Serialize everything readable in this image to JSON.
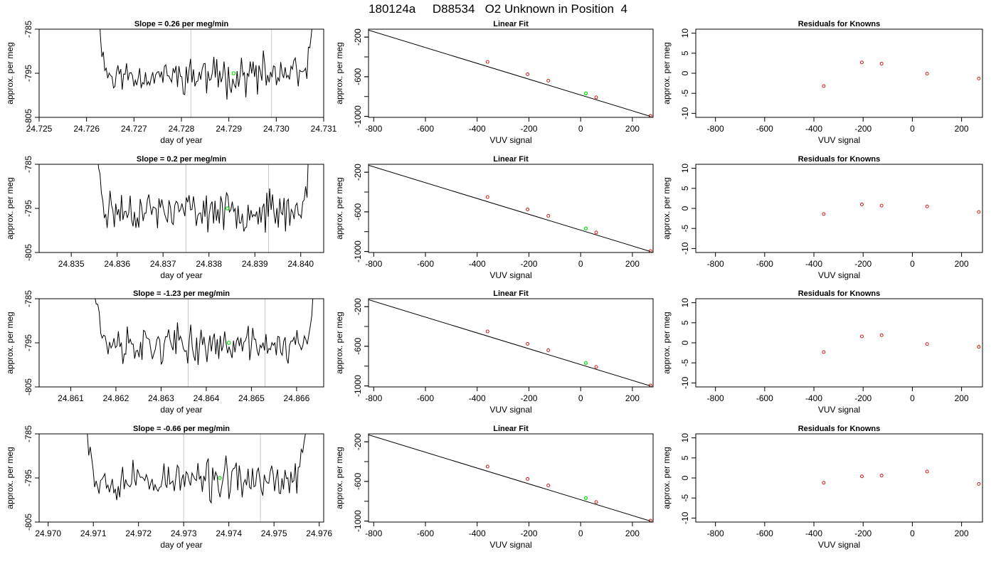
{
  "figure": {
    "title": "180124a     D88534   O2 Unknown in Position  4",
    "colors": {
      "axes": "#000000",
      "line": "#000000",
      "fit_point": "#cc0000",
      "unknown_point": "#00dd00",
      "vline": "#c8c8c8"
    }
  },
  "chart_data": [
    {
      "type": "line",
      "panel": "time-series-row-1",
      "title": "Slope =  0.26  per meg/min",
      "xlabel": "day of year",
      "ylabel": "approx. per meg",
      "xlim": [
        24.725,
        24.731
      ],
      "ylim": [
        -805,
        -785
      ],
      "xticks": [
        24.725,
        24.726,
        24.727,
        24.728,
        24.729,
        24.73,
        24.731
      ],
      "yticks": [
        -805,
        -795,
        -785
      ],
      "window_start": 24.7262,
      "window_end": 24.7308,
      "vlines": [
        24.7282,
        24.7299
      ],
      "unknown_point": {
        "x": 24.7291,
        "y": -795.0
      },
      "seed": 11
    },
    {
      "type": "scatter",
      "panel": "linear-fit-row-1",
      "title": "Linear Fit",
      "xlabel": "VUV signal",
      "ylabel": "approx. per meg",
      "xlim": [
        -820,
        280
      ],
      "ylim": [
        -1010,
        -120
      ],
      "xticks": [
        -800,
        -600,
        -400,
        -200,
        0,
        200
      ],
      "yticks": [
        -1000,
        -600,
        -200
      ],
      "fit_line": {
        "x": [
          -820,
          270
        ],
        "y": [
          -130,
          -1000
        ]
      },
      "points": {
        "x": [
          -360,
          -205,
          -125,
          60,
          270
        ],
        "y": [
          -450,
          -575,
          -640,
          -808,
          -995
        ]
      },
      "unknown_point": {
        "x": 20,
        "y": -768
      }
    },
    {
      "type": "scatter",
      "panel": "residuals-row-1",
      "title": "Residuals for Knowns",
      "xlabel": "VUV signal",
      "ylabel": "approx. per meg",
      "xlim": [
        -880,
        285
      ],
      "ylim": [
        -11,
        11
      ],
      "xticks": [
        -800,
        -600,
        -400,
        -200,
        0,
        200
      ],
      "yticks": [
        -10,
        -5,
        0,
        5,
        10
      ],
      "points": {
        "x": [
          -360,
          -205,
          -125,
          60,
          270
        ],
        "y": [
          -3.2,
          2.7,
          2.4,
          -0.1,
          -1.3
        ]
      }
    },
    {
      "type": "line",
      "panel": "time-series-row-2",
      "title": "Slope =  0.2  per meg/min",
      "xlabel": "day of year",
      "ylabel": "approx. per meg",
      "xlim": [
        24.8343,
        24.8405
      ],
      "ylim": [
        -805,
        -785
      ],
      "xticks": [
        24.835,
        24.836,
        24.837,
        24.838,
        24.839,
        24.84
      ],
      "yticks": [
        -805,
        -795,
        -785
      ],
      "window_start": 24.8355,
      "window_end": 24.8402,
      "vlines": [
        24.8375,
        24.8393
      ],
      "unknown_point": {
        "x": 24.8384,
        "y": -795.0
      },
      "seed": 23
    },
    {
      "type": "scatter",
      "panel": "linear-fit-row-2",
      "title": "Linear Fit",
      "xlabel": "VUV signal",
      "ylabel": "approx. per meg",
      "xlim": [
        -820,
        280
      ],
      "ylim": [
        -1010,
        -120
      ],
      "xticks": [
        -800,
        -600,
        -400,
        -200,
        0,
        200
      ],
      "yticks": [
        -1000,
        -600,
        -200
      ],
      "fit_line": {
        "x": [
          -820,
          270
        ],
        "y": [
          -130,
          -1000
        ]
      },
      "points": {
        "x": [
          -360,
          -205,
          -125,
          60,
          270
        ],
        "y": [
          -450,
          -575,
          -640,
          -808,
          -995
        ]
      },
      "unknown_point": {
        "x": 20,
        "y": -768
      }
    },
    {
      "type": "scatter",
      "panel": "residuals-row-2",
      "title": "Residuals for Knowns",
      "xlabel": "VUV signal",
      "ylabel": "approx. per meg",
      "xlim": [
        -880,
        285
      ],
      "ylim": [
        -11,
        11
      ],
      "xticks": [
        -800,
        -600,
        -400,
        -200,
        0,
        200
      ],
      "yticks": [
        -10,
        -5,
        0,
        5,
        10
      ],
      "points": {
        "x": [
          -360,
          -205,
          -125,
          60,
          270
        ],
        "y": [
          -1.4,
          1.0,
          0.7,
          0.5,
          -0.9
        ]
      }
    },
    {
      "type": "line",
      "panel": "time-series-row-3",
      "title": "Slope =  -1.23  per meg/min",
      "xlabel": "day of year",
      "ylabel": "approx. per meg",
      "xlim": [
        24.8603,
        24.8666
      ],
      "ylim": [
        -805,
        -785
      ],
      "xticks": [
        24.861,
        24.862,
        24.863,
        24.864,
        24.865,
        24.866
      ],
      "yticks": [
        -805,
        -795,
        -785
      ],
      "window_start": 24.8615,
      "window_end": 24.8664,
      "vlines": [
        24.8636,
        24.8653
      ],
      "unknown_point": {
        "x": 24.8645,
        "y": -795.0
      },
      "seed": 37
    },
    {
      "type": "scatter",
      "panel": "linear-fit-row-3",
      "title": "Linear Fit",
      "xlabel": "VUV signal",
      "ylabel": "approx. per meg",
      "xlim": [
        -820,
        280
      ],
      "ylim": [
        -1010,
        -120
      ],
      "xticks": [
        -800,
        -600,
        -400,
        -200,
        0,
        200
      ],
      "yticks": [
        -1000,
        -600,
        -200
      ],
      "fit_line": {
        "x": [
          -820,
          270
        ],
        "y": [
          -130,
          -1000
        ]
      },
      "points": {
        "x": [
          -360,
          -205,
          -125,
          60,
          270
        ],
        "y": [
          -450,
          -575,
          -640,
          -808,
          -995
        ]
      },
      "unknown_point": {
        "x": 20,
        "y": -768
      }
    },
    {
      "type": "scatter",
      "panel": "residuals-row-3",
      "title": "Residuals for Knowns",
      "xlabel": "VUV signal",
      "ylabel": "approx. per meg",
      "xlim": [
        -880,
        285
      ],
      "ylim": [
        -11,
        11
      ],
      "xticks": [
        -800,
        -600,
        -400,
        -200,
        0,
        200
      ],
      "yticks": [
        -10,
        -5,
        0,
        5,
        10
      ],
      "points": {
        "x": [
          -360,
          -205,
          -125,
          60,
          270
        ],
        "y": [
          -2.3,
          1.6,
          1.9,
          -0.3,
          -1.0
        ]
      }
    },
    {
      "type": "line",
      "panel": "time-series-row-4",
      "title": "Slope =  -0.66  per meg/min",
      "xlabel": "day of year",
      "ylabel": "approx. per meg",
      "xlim": [
        24.9698,
        24.9761
      ],
      "ylim": [
        -805,
        -785
      ],
      "xticks": [
        24.97,
        24.971,
        24.972,
        24.973,
        24.974,
        24.975,
        24.976
      ],
      "yticks": [
        -805,
        -795,
        -785
      ],
      "window_start": 24.9708,
      "window_end": 24.9757,
      "vlines": [
        24.973,
        24.9747
      ],
      "unknown_point": {
        "x": 24.9738,
        "y": -795.0
      },
      "seed": 53
    },
    {
      "type": "scatter",
      "panel": "linear-fit-row-4",
      "title": "Linear Fit",
      "xlabel": "VUV signal",
      "ylabel": "approx. per meg",
      "xlim": [
        -820,
        280
      ],
      "ylim": [
        -1010,
        -120
      ],
      "xticks": [
        -800,
        -600,
        -400,
        -200,
        0,
        200
      ],
      "yticks": [
        -1000,
        -600,
        -200
      ],
      "fit_line": {
        "x": [
          -820,
          270
        ],
        "y": [
          -130,
          -1000
        ]
      },
      "points": {
        "x": [
          -360,
          -205,
          -125,
          60,
          270
        ],
        "y": [
          -450,
          -575,
          -640,
          -808,
          -995
        ]
      },
      "unknown_point": {
        "x": 20,
        "y": -768
      }
    },
    {
      "type": "scatter",
      "panel": "residuals-row-4",
      "title": "Residuals for Knowns",
      "xlabel": "VUV signal",
      "ylabel": "approx. per meg",
      "xlim": [
        -880,
        285
      ],
      "ylim": [
        -11,
        11
      ],
      "xticks": [
        -800,
        -600,
        -400,
        -200,
        0,
        200
      ],
      "yticks": [
        -10,
        -5,
        0,
        5,
        10
      ],
      "points": {
        "x": [
          -360,
          -205,
          -125,
          60,
          270
        ],
        "y": [
          -1.2,
          0.4,
          0.6,
          1.6,
          -1.5
        ]
      }
    }
  ]
}
